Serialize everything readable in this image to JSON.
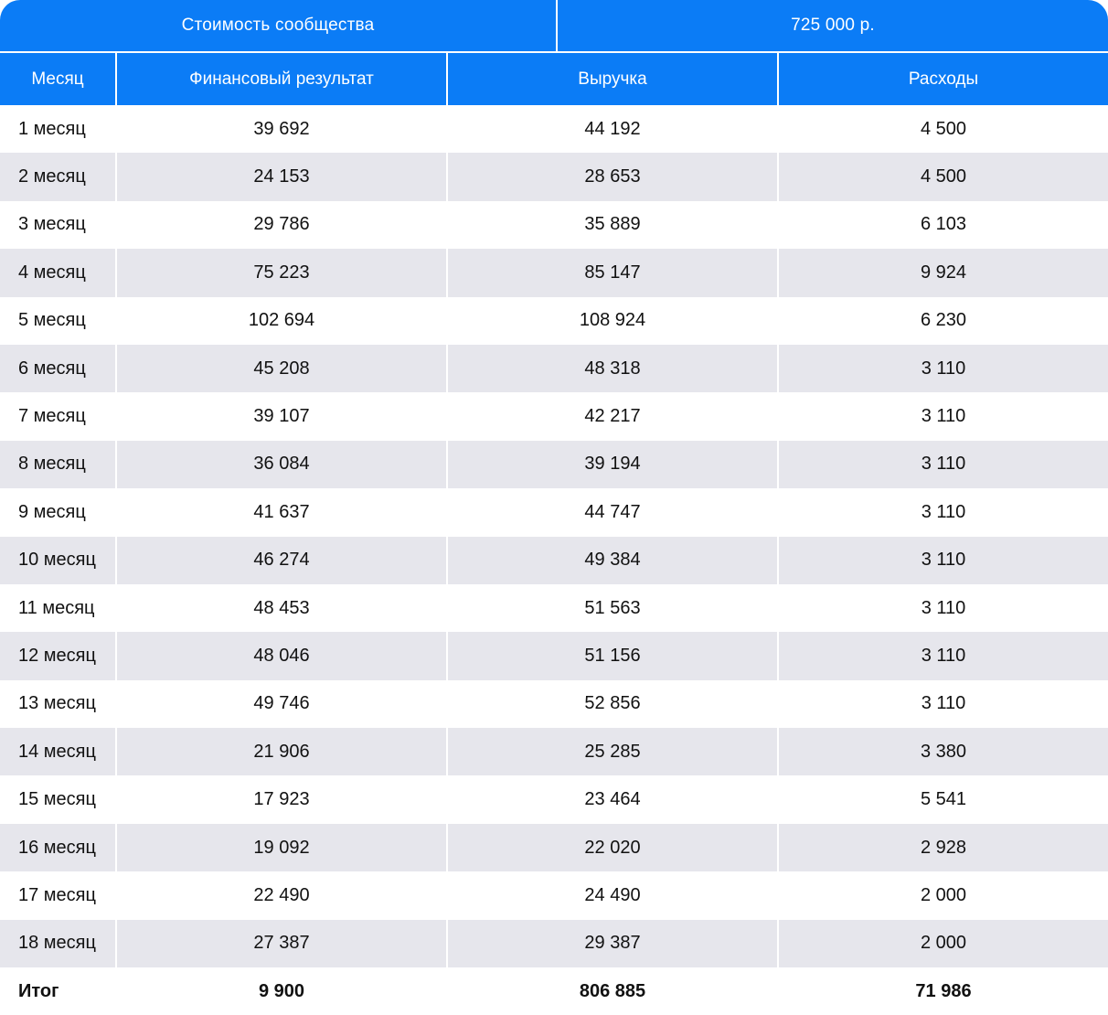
{
  "summary": {
    "label": "Стоимость сообщества",
    "value": "725 000 р."
  },
  "headers": [
    "Месяц",
    "Финансовый результат",
    "Выручка",
    "Расходы"
  ],
  "rows": [
    [
      "1 месяц",
      "39 692",
      "44 192",
      "4 500"
    ],
    [
      "2 месяц",
      "24 153",
      "28 653",
      "4 500"
    ],
    [
      "3 месяц",
      "29 786",
      "35 889",
      "6 103"
    ],
    [
      "4 месяц",
      "75 223",
      "85 147",
      "9 924"
    ],
    [
      "5 месяц",
      "102 694",
      "108 924",
      "6 230"
    ],
    [
      "6 месяц",
      "45 208",
      "48 318",
      "3 110"
    ],
    [
      "7 месяц",
      "39 107",
      "42 217",
      "3 110"
    ],
    [
      "8 месяц",
      "36 084",
      "39 194",
      "3 110"
    ],
    [
      "9 месяц",
      "41 637",
      "44 747",
      "3 110"
    ],
    [
      "10 месяц",
      "46 274",
      "49 384",
      "3 110"
    ],
    [
      "11 месяц",
      "48 453",
      "51 563",
      "3 110"
    ],
    [
      "12 месяц",
      "48 046",
      "51 156",
      "3 110"
    ],
    [
      "13 месяц",
      "49 746",
      "52 856",
      "3 110"
    ],
    [
      "14 месяц",
      "21 906",
      "25 285",
      "3 380"
    ],
    [
      "15 месяц",
      "17 923",
      "23 464",
      "5 541"
    ],
    [
      "16 месяц",
      "19 092",
      "22 020",
      "2 928"
    ],
    [
      "17 месяц",
      "22 490",
      "24 490",
      "2 000"
    ],
    [
      "18 месяц",
      "27 387",
      "29 387",
      "2 000"
    ]
  ],
  "total": [
    "Итог",
    "9 900",
    "806 885",
    "71 986"
  ],
  "colors": {
    "header_bg": "#0b7cf6",
    "stripe_bg": "#e6e6ec",
    "text": "#111111"
  }
}
